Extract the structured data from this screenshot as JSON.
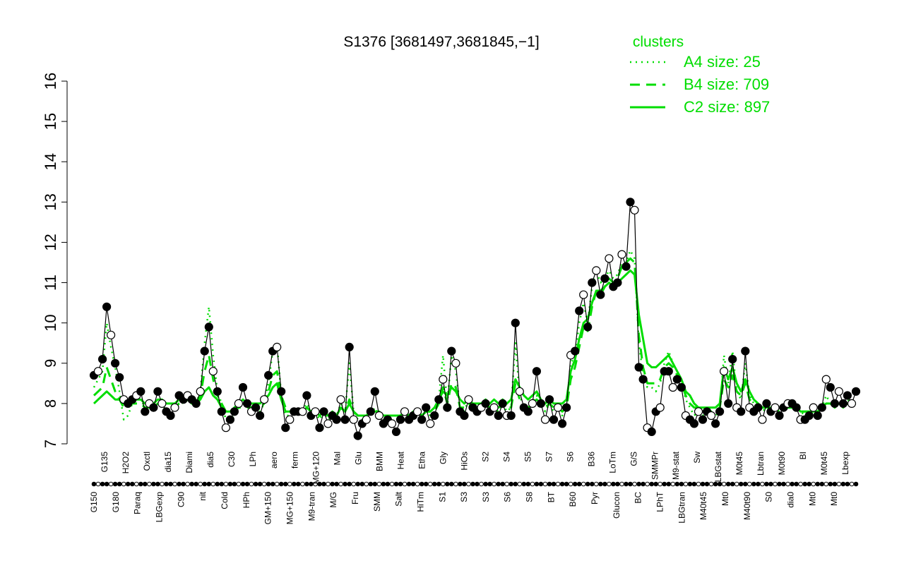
{
  "chart_data": {
    "type": "line",
    "title": "S1376 [3681497,3681845,−1]",
    "xlabel": "",
    "ylabel": "",
    "ylim": [
      7,
      16
    ],
    "yticks": [
      7,
      8,
      9,
      10,
      11,
      12,
      13,
      14,
      15,
      16
    ],
    "colors": {
      "cluster": "#00dd00",
      "points": "#000000",
      "background": "#ffffff"
    },
    "legend": {
      "title": "clusters",
      "position": "top-right",
      "entries": [
        {
          "label": "A4 size: 25",
          "style": "dotted"
        },
        {
          "label": "B4 size: 709",
          "style": "dashed"
        },
        {
          "label": "C2 size: 897",
          "style": "solid"
        }
      ]
    },
    "x_tick_labels": {
      "top": [
        "G135",
        "H2O2",
        "Oxctl",
        "dia15",
        "Diami",
        "dia5",
        "C30",
        "LPh",
        "aero",
        "ferm",
        "MG+120",
        "Mal",
        "Glu",
        "BMM",
        "Heat",
        "Etha",
        "Gly",
        "HiOs",
        "S2",
        "S4",
        "S5",
        "S7",
        "S6",
        "B36",
        "LoTm",
        "G/S",
        "SMMPr",
        "M9-stat",
        "Sw",
        "LBGstat",
        "M0t45",
        "Lbtran",
        "M0t90",
        "BI",
        "M0t45",
        "Lbexp"
      ],
      "bottom": [
        "G150",
        "G180",
        "Paraq",
        "LBGexp",
        "C90",
        "nit",
        "Cold",
        "HPh",
        "GM+150",
        "MG+150",
        "M9-tran",
        "M/G",
        "Fru",
        "SMM",
        "Salt",
        "HiTm",
        "S1",
        "S3",
        "S3",
        "S6",
        "S8",
        "BT",
        "B60",
        "Pyr",
        "Glucon",
        "BC",
        "LPhT",
        "LBGtran",
        "M40t45",
        "Mt0",
        "M40t90",
        "S0",
        "dia0",
        "Mt0",
        "Mt0"
      ]
    },
    "profile": [
      8.7,
      8.8,
      9.1,
      10.4,
      9.7,
      9.0,
      8.65,
      8.1,
      8.0,
      8.1,
      8.2,
      8.3,
      7.8,
      8.0,
      7.9,
      8.3,
      8.0,
      7.8,
      7.7,
      7.9,
      8.2,
      8.1,
      8.2,
      8.1,
      8.0,
      8.3,
      9.3,
      9.9,
      8.8,
      8.3,
      7.8,
      7.4,
      7.6,
      7.8,
      8.0,
      8.4,
      8.0,
      7.8,
      7.9,
      7.7,
      8.1,
      8.7,
      9.3,
      9.4,
      8.3,
      7.4,
      7.6,
      7.8,
      7.8,
      7.8,
      8.2,
      7.7,
      7.8,
      7.4,
      7.8,
      7.5,
      7.7,
      7.6,
      8.1,
      7.6,
      9.4,
      7.6,
      7.2,
      7.5,
      7.6,
      7.8,
      8.3,
      7.7,
      7.5,
      7.6,
      7.5,
      7.3,
      7.6,
      7.8,
      7.6,
      7.7,
      7.8,
      7.6,
      7.9,
      7.5,
      7.7,
      8.1,
      8.6,
      7.9,
      9.3,
      9.0,
      7.8,
      7.7,
      8.1,
      7.9,
      7.8,
      7.9,
      8.0,
      7.8,
      7.9,
      7.7,
      8.0,
      7.7,
      7.7,
      10.0,
      8.3,
      7.9,
      7.8,
      8.0,
      8.8,
      8.0,
      7.6,
      8.1,
      7.6,
      7.9,
      7.5,
      7.9,
      9.2,
      9.3,
      10.3,
      10.7,
      9.9,
      11.0,
      11.3,
      10.7,
      11.1,
      11.6,
      10.9,
      11.0,
      11.7,
      11.4,
      13.0,
      12.8,
      8.9,
      8.6,
      7.4,
      7.3,
      7.8,
      7.9,
      8.8,
      8.8,
      8.4,
      8.6,
      8.4,
      7.7,
      7.6,
      7.5,
      7.8,
      7.6,
      7.8,
      7.7,
      7.5,
      7.8,
      8.8,
      8.0,
      9.1,
      7.9,
      7.8,
      9.3,
      7.9,
      7.8,
      7.9,
      7.6,
      8.0,
      7.8,
      7.9,
      7.7,
      7.9,
      8.0,
      8.0,
      7.9,
      7.6,
      7.6,
      7.7,
      7.9,
      7.7,
      7.9,
      8.6,
      8.4,
      8.0,
      8.3,
      8.0,
      8.2,
      8.0,
      8.3
    ],
    "series": [
      {
        "name": "A4 size: 25",
        "style": "dotted",
        "values": [
          8.4,
          8.6,
          8.8,
          10.0,
          9.4,
          8.9,
          8.3,
          7.6,
          7.7,
          8.0,
          8.1,
          8.1,
          7.9,
          7.9,
          7.9,
          8.0,
          8.0,
          7.8,
          7.8,
          7.9,
          8.1,
          8.0,
          8.1,
          8.0,
          8.0,
          8.3,
          9.5,
          10.4,
          9.2,
          8.3,
          8.0,
          7.6,
          7.6,
          7.7,
          8.0,
          8.0,
          8.0,
          7.9,
          7.9,
          7.8,
          8.0,
          8.5,
          9.3,
          9.5,
          8.2,
          7.7,
          7.7,
          7.8,
          7.8,
          7.8,
          8.0,
          7.8,
          7.8,
          7.6,
          7.8,
          7.6,
          7.7,
          7.7,
          8.0,
          7.8,
          9.0,
          7.8,
          7.6,
          7.6,
          7.7,
          7.7,
          7.9,
          7.7,
          7.6,
          7.6,
          7.6,
          7.5,
          7.6,
          7.7,
          7.6,
          7.7,
          7.7,
          7.6,
          7.8,
          7.7,
          7.8,
          8.1,
          9.2,
          8.0,
          9.2,
          8.8,
          7.9,
          7.8,
          8.1,
          7.9,
          7.9,
          7.9,
          8.0,
          7.9,
          7.9,
          7.8,
          8.0,
          7.8,
          7.9,
          9.5,
          8.2,
          7.9,
          7.9,
          8.0,
          8.2,
          8.0,
          7.8,
          8.0,
          7.8,
          7.9,
          7.7,
          7.9,
          9.0,
          9.2,
          10.0,
          10.5,
          10.0,
          10.9,
          11.3,
          11.0,
          11.1,
          11.3,
          11.1,
          11.2,
          11.5,
          11.5,
          11.8,
          11.6,
          9.5,
          8.7,
          8.4,
          8.4,
          8.3,
          8.5,
          9.0,
          9.3,
          9.0,
          8.8,
          8.6,
          8.1,
          7.9,
          7.7,
          7.8,
          7.7,
          7.8,
          7.7,
          7.7,
          7.8,
          9.2,
          8.5,
          9.3,
          8.3,
          8.1,
          9.0,
          8.2,
          8.0,
          8.0,
          7.8,
          7.9,
          7.9,
          7.9,
          7.8,
          7.9,
          7.9,
          7.9,
          7.9,
          7.8,
          7.7,
          7.7,
          7.8,
          7.8,
          7.9,
          8.2,
          8.0,
          7.9,
          8.0,
          7.9,
          8.1,
          8.0,
          8.1
        ]
      },
      {
        "name": "B4 size: 709",
        "style": "dashed",
        "values": [
          8.2,
          8.3,
          8.4,
          8.9,
          8.6,
          8.3,
          8.1,
          7.9,
          7.9,
          8.0,
          8.0,
          8.0,
          7.9,
          7.9,
          7.9,
          8.0,
          8.0,
          7.9,
          7.9,
          7.9,
          8.0,
          8.0,
          8.1,
          8.0,
          8.0,
          8.2,
          8.8,
          9.2,
          8.6,
          8.2,
          8.0,
          7.8,
          7.8,
          7.8,
          7.9,
          7.9,
          7.9,
          7.9,
          7.9,
          7.9,
          8.0,
          8.3,
          8.7,
          8.8,
          8.2,
          7.9,
          7.8,
          7.8,
          7.8,
          7.8,
          7.9,
          7.8,
          7.8,
          7.7,
          7.8,
          7.7,
          7.8,
          7.7,
          7.9,
          7.8,
          8.1,
          7.8,
          7.7,
          7.7,
          7.7,
          7.8,
          7.8,
          7.8,
          7.7,
          7.7,
          7.7,
          7.7,
          7.7,
          7.8,
          7.7,
          7.8,
          7.8,
          7.7,
          7.8,
          7.8,
          7.8,
          8.0,
          8.4,
          8.0,
          8.5,
          8.4,
          7.9,
          7.9,
          8.0,
          7.9,
          7.9,
          7.9,
          8.0,
          7.9,
          7.9,
          7.9,
          8.0,
          7.9,
          7.9,
          8.5,
          8.1,
          7.9,
          7.9,
          8.0,
          8.1,
          8.0,
          7.9,
          8.0,
          7.9,
          7.9,
          7.8,
          7.9,
          8.6,
          8.9,
          9.4,
          9.9,
          9.8,
          10.4,
          10.8,
          10.7,
          10.9,
          11.1,
          11.0,
          11.1,
          11.4,
          11.5,
          11.6,
          11.5,
          9.7,
          8.9,
          8.5,
          8.5,
          8.5,
          8.6,
          8.9,
          9.0,
          8.9,
          8.7,
          8.5,
          8.2,
          8.0,
          7.9,
          7.9,
          7.8,
          7.8,
          7.8,
          7.8,
          7.9,
          8.6,
          8.4,
          8.7,
          8.3,
          8.2,
          8.5,
          8.1,
          8.0,
          8.0,
          7.9,
          7.9,
          7.9,
          7.9,
          7.9,
          7.9,
          7.9,
          7.9,
          7.9,
          7.8,
          7.8,
          7.8,
          7.8,
          7.8,
          7.9,
          8.0,
          8.0,
          7.9,
          8.0,
          7.9,
          8.0,
          8.0,
          8.0
        ]
      },
      {
        "name": "C2 size: 897",
        "style": "solid",
        "values": [
          8.0,
          8.1,
          8.2,
          8.3,
          8.2,
          8.1,
          8.1,
          8.0,
          8.0,
          8.1,
          8.1,
          8.1,
          8.0,
          8.0,
          8.0,
          8.1,
          8.1,
          8.0,
          8.0,
          8.0,
          8.1,
          8.1,
          8.1,
          8.0,
          8.0,
          8.1,
          8.3,
          8.4,
          8.2,
          8.1,
          7.9,
          7.8,
          7.8,
          7.9,
          8.0,
          8.1,
          8.0,
          8.0,
          8.0,
          8.0,
          8.1,
          8.2,
          8.4,
          8.5,
          8.1,
          7.8,
          7.8,
          7.8,
          7.8,
          7.8,
          7.9,
          7.8,
          7.8,
          7.7,
          7.8,
          7.7,
          7.8,
          7.7,
          7.9,
          7.8,
          8.0,
          7.8,
          7.7,
          7.7,
          7.7,
          7.8,
          7.8,
          7.8,
          7.7,
          7.7,
          7.7,
          7.7,
          7.7,
          7.8,
          7.7,
          7.8,
          7.8,
          7.7,
          7.8,
          7.8,
          7.9,
          8.1,
          8.3,
          8.2,
          8.4,
          8.3,
          8.1,
          8.0,
          8.1,
          8.0,
          8.0,
          8.0,
          8.1,
          8.0,
          8.1,
          8.0,
          8.1,
          8.0,
          8.1,
          8.6,
          8.4,
          8.2,
          8.1,
          8.2,
          8.3,
          8.1,
          8.0,
          8.1,
          8.0,
          8.0,
          8.0,
          8.1,
          8.8,
          9.1,
          9.6,
          10.0,
          10.1,
          10.5,
          10.8,
          10.8,
          10.9,
          11.0,
          10.9,
          11.0,
          11.1,
          11.2,
          11.3,
          11.2,
          10.2,
          9.6,
          9.0,
          8.9,
          8.9,
          9.0,
          9.1,
          9.2,
          9.0,
          8.8,
          8.6,
          8.3,
          8.2,
          8.0,
          7.9,
          7.9,
          7.9,
          7.9,
          7.9,
          8.0,
          8.9,
          8.6,
          8.9,
          8.5,
          8.3,
          8.6,
          8.3,
          8.1,
          8.0,
          7.9,
          7.9,
          7.9,
          7.9,
          7.9,
          7.9,
          7.9,
          7.9,
          7.9,
          7.8,
          7.8,
          7.8,
          7.8,
          7.8,
          7.9,
          8.0,
          8.0,
          8.0,
          8.0,
          8.0,
          8.0,
          8.0,
          8.0
        ]
      }
    ]
  }
}
